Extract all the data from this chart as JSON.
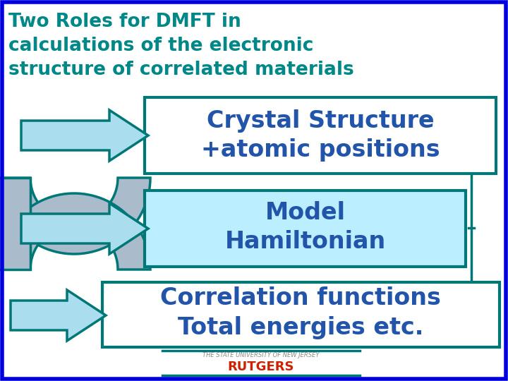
{
  "title_line1": "Two Roles for DMFT in",
  "title_line2": "calculations of the electronic",
  "title_line3": "structure of correlated materials",
  "box1_text1": "Crystal Structure",
  "box1_text2": "+atomic positions",
  "box2_text1": "Model",
  "box2_text2": "Hamiltonian",
  "box3_text1": "Correlation functions",
  "box3_text2": "Total energies etc.",
  "footer_top": "THE STATE UNIVERSITY OF NEW JERSEY",
  "footer_bottom": "RUTGERS",
  "bg_color": "#ffffff",
  "border_color": "#0000dd",
  "teal_color": "#008888",
  "text_color": "#2255aa",
  "dark_teal": "#007777",
  "box1_bg": "#ffffff",
  "box2_bg": "#bbeeff",
  "box3_bg": "#ffffff",
  "arrow_fill": "#aaddee",
  "arrow_edge": "#007777",
  "spiral_fill": "#aabbcc",
  "spiral_edge": "#007777",
  "rutgers_color": "#cc2200",
  "footer_color": "#888888",
  "vline_color": "#007777"
}
